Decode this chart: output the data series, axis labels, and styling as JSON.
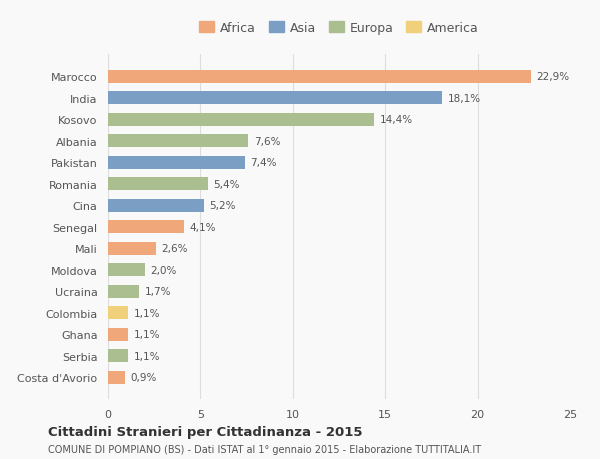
{
  "countries": [
    "Marocco",
    "India",
    "Kosovo",
    "Albania",
    "Pakistan",
    "Romania",
    "Cina",
    "Senegal",
    "Mali",
    "Moldova",
    "Ucraina",
    "Colombia",
    "Ghana",
    "Serbia",
    "Costa d'Avorio"
  ],
  "values": [
    22.9,
    18.1,
    14.4,
    7.6,
    7.4,
    5.4,
    5.2,
    4.1,
    2.6,
    2.0,
    1.7,
    1.1,
    1.1,
    1.1,
    0.9
  ],
  "labels": [
    "22,9%",
    "18,1%",
    "14,4%",
    "7,6%",
    "7,4%",
    "5,4%",
    "5,2%",
    "4,1%",
    "2,6%",
    "2,0%",
    "1,7%",
    "1,1%",
    "1,1%",
    "1,1%",
    "0,9%"
  ],
  "continents": [
    "Africa",
    "Asia",
    "Europa",
    "Europa",
    "Asia",
    "Europa",
    "Asia",
    "Africa",
    "Africa",
    "Europa",
    "Europa",
    "America",
    "Africa",
    "Europa",
    "Africa"
  ],
  "colors": {
    "Africa": "#F0A87A",
    "Asia": "#7A9EC4",
    "Europa": "#ABBE8F",
    "America": "#F0D07A"
  },
  "legend_order": [
    "Africa",
    "Asia",
    "Europa",
    "America"
  ],
  "title": "Cittadini Stranieri per Cittadinanza - 2015",
  "subtitle": "COMUNE DI POMPIANO (BS) - Dati ISTAT al 1° gennaio 2015 - Elaborazione TUTTITALIA.IT",
  "xlim": [
    0,
    25
  ],
  "xticks": [
    0,
    5,
    10,
    15,
    20,
    25
  ],
  "background_color": "#f9f9f9",
  "grid_color": "#dddddd"
}
